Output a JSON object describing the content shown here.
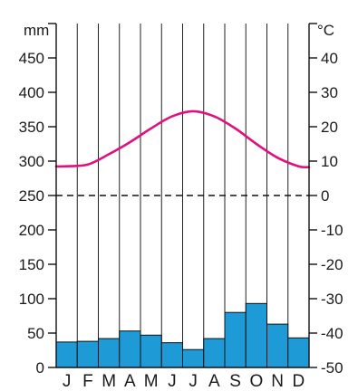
{
  "chart_data": [
    {
      "type": "bar",
      "series_role": "precipitation",
      "categories": [
        "J",
        "F",
        "M",
        "A",
        "M",
        "J",
        "J",
        "A",
        "S",
        "O",
        "N",
        "D"
      ],
      "values": [
        37,
        38,
        42,
        53,
        47,
        36,
        26,
        42,
        80,
        93,
        63,
        43
      ],
      "ylabel": "mm",
      "ylim": [
        0,
        500
      ],
      "yticks": [
        0,
        50,
        100,
        150,
        200,
        250,
        300,
        350,
        400,
        450
      ],
      "grid": true,
      "color": "#1e9ad6"
    },
    {
      "type": "line",
      "series_role": "temperature",
      "categories": [
        "J",
        "F",
        "M",
        "A",
        "M",
        "J",
        "J",
        "A",
        "S",
        "O",
        "N",
        "D"
      ],
      "values": [
        8.5,
        9,
        12,
        15.5,
        19.5,
        23,
        24.5,
        23,
        19.5,
        15,
        11,
        8.5
      ],
      "ylabel": "°C",
      "ylim": [
        -50,
        50
      ],
      "yticks": [
        -50,
        -40,
        -30,
        -20,
        -10,
        0,
        10,
        20,
        30,
        40
      ],
      "zero_line": "dashed",
      "color": "#e0117f"
    }
  ],
  "labels": {
    "left_unit": "mm",
    "right_unit": "°C"
  }
}
